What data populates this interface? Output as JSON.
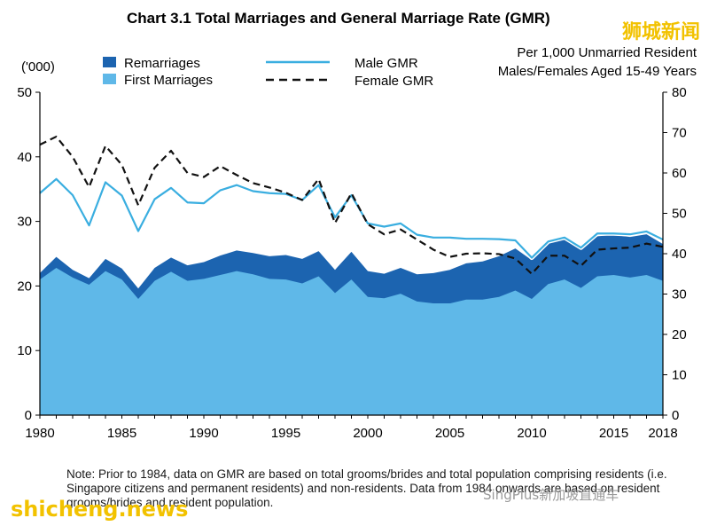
{
  "chart_data": {
    "type": "area",
    "title": "Chart 3.1  Total Marriages and General Marriage Rate (GMR)",
    "left_axis_unit": "('000)",
    "right_axis_label_line1": "Per 1,000 Unmarried Resident",
    "right_axis_label_line2": "Males/Females Aged 15-49 Years",
    "x": [
      1980,
      1981,
      1982,
      1983,
      1984,
      1985,
      1986,
      1987,
      1988,
      1989,
      1990,
      1991,
      1992,
      1993,
      1994,
      1995,
      1996,
      1997,
      1998,
      1999,
      2000,
      2001,
      2002,
      2003,
      2004,
      2005,
      2006,
      2007,
      2008,
      2009,
      2010,
      2011,
      2012,
      2013,
      2014,
      2015,
      2016,
      2017,
      2018
    ],
    "x_ticks": [
      "1980",
      "1985",
      "1990",
      "1995",
      "2000",
      "2005",
      "2010",
      "2015",
      "2018"
    ],
    "ylim_left": [
      0,
      50
    ],
    "y_ticks_left": [
      "0",
      "10",
      "20",
      "30",
      "40",
      "50"
    ],
    "ylim_right": [
      0,
      80
    ],
    "y_ticks_right": [
      "0",
      "10",
      "20",
      "30",
      "40",
      "50",
      "60",
      "70",
      "80"
    ],
    "legend": {
      "remarriages": "Remarriages",
      "first_marriages": "First Marriages",
      "male_gmr": "Male GMR",
      "female_gmr": "Female GMR"
    },
    "series": [
      {
        "name": "First Marriages",
        "axis": "left",
        "style": "area",
        "color": "#5fb8e8",
        "values": [
          21.0,
          22.8,
          21.3,
          20.2,
          22.3,
          21.0,
          18.0,
          20.8,
          22.2,
          20.8,
          21.1,
          21.7,
          22.3,
          21.8,
          21.1,
          21.0,
          20.4,
          21.5,
          18.9,
          21.0,
          18.3,
          18.1,
          18.8,
          17.6,
          17.3,
          17.3,
          17.9,
          17.9,
          18.3,
          19.3,
          18.0,
          20.3,
          21.0,
          19.7,
          21.5,
          21.7,
          21.3,
          21.7,
          20.8
        ]
      },
      {
        "name": "Remarriages",
        "axis": "left",
        "style": "area-stacked",
        "color": "#1c64b0",
        "values": [
          1.0,
          1.7,
          1.2,
          1.0,
          1.9,
          1.7,
          1.6,
          2.0,
          2.2,
          2.4,
          2.6,
          3.0,
          3.2,
          3.3,
          3.5,
          3.8,
          3.8,
          3.9,
          3.6,
          4.3,
          4.0,
          3.8,
          4.0,
          4.2,
          4.7,
          5.2,
          5.6,
          5.9,
          6.3,
          6.5,
          6.0,
          6.7,
          6.6,
          6.1,
          6.2,
          6.2,
          6.3,
          6.3,
          5.7
        ]
      },
      {
        "name": "Male GMR",
        "axis": "right",
        "style": "line",
        "color": "#3aaee0",
        "values": [
          55.0,
          58.5,
          54.5,
          47.0,
          57.7,
          54.4,
          45.6,
          53.5,
          56.3,
          52.7,
          52.5,
          55.7,
          57.0,
          55.5,
          55.0,
          54.8,
          53.3,
          57.0,
          49.0,
          54.5,
          47.5,
          46.7,
          47.5,
          44.7,
          44.0,
          44.0,
          43.7,
          43.7,
          43.6,
          43.3,
          39.0,
          43.0,
          44.0,
          41.5,
          45.0,
          45.0,
          44.8,
          45.5,
          43.5
        ]
      },
      {
        "name": "Female GMR",
        "axis": "right",
        "style": "dashed",
        "color": "#111111",
        "values": [
          67.0,
          69.0,
          64.0,
          56.5,
          66.7,
          62.0,
          52.0,
          61.3,
          65.5,
          60.0,
          59.0,
          61.7,
          59.5,
          57.5,
          56.4,
          55.1,
          53.3,
          58.5,
          47.6,
          55.0,
          47.3,
          44.8,
          46.0,
          43.5,
          41.0,
          39.2,
          40.0,
          40.1,
          39.9,
          38.8,
          35.0,
          39.5,
          39.5,
          37.0,
          41.0,
          41.3,
          41.5,
          42.5,
          41.7
        ]
      }
    ]
  },
  "note": "Note: Prior to 1984, data on GMR are based on total grooms/brides and total population comprising residents (i.e. Singapore citizens and permanent residents) and non-residents. Data from 1984 onwards are based on resident grooms/brides and resident population.",
  "watermarks": {
    "top_right": "狮城新闻",
    "bottom_left": "shicheng.news",
    "bottom_right": "SingPlus新加坡直通车"
  }
}
